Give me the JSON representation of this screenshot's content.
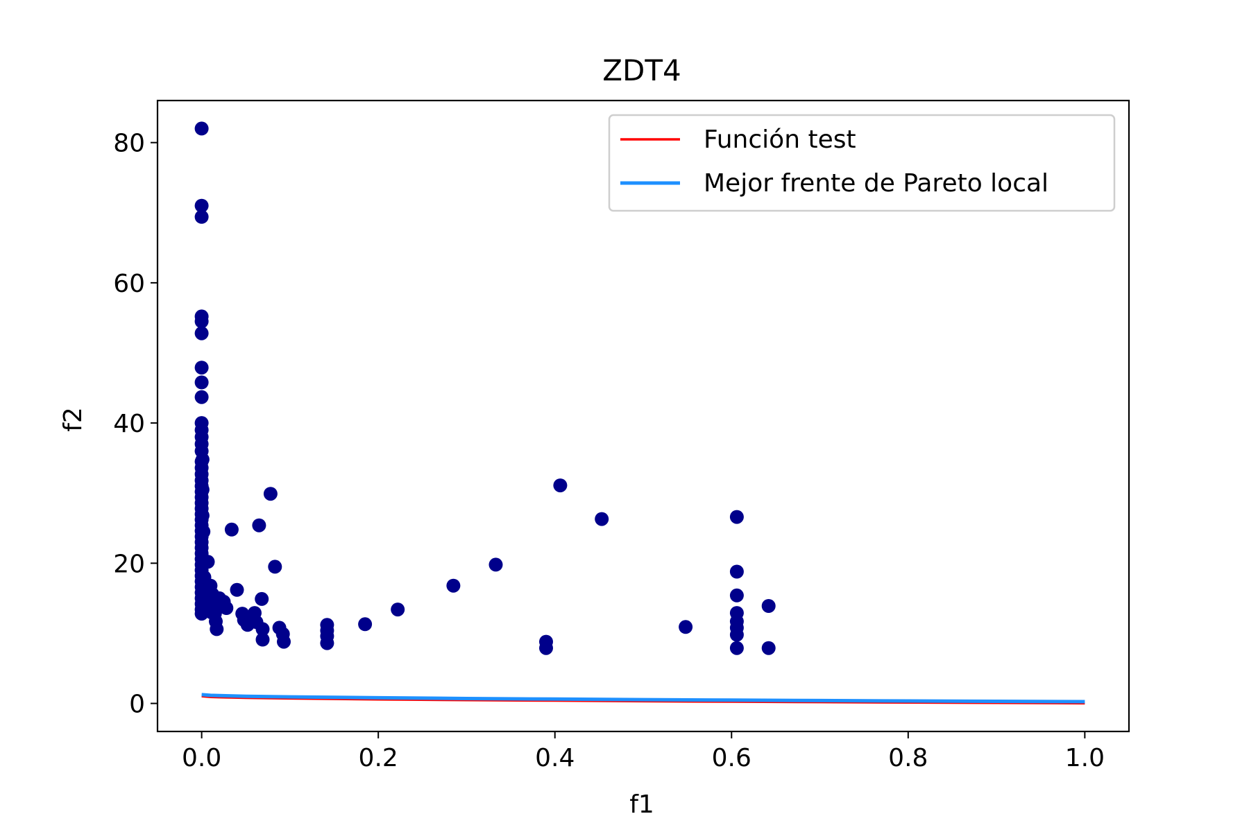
{
  "chart_data": {
    "type": "scatter",
    "title": "ZDT4",
    "xlabel": "f1",
    "ylabel": "f2",
    "xlim": [
      -0.05,
      1.05
    ],
    "ylim": [
      -4,
      86
    ],
    "xticks": [
      0.0,
      0.2,
      0.4,
      0.6,
      0.8,
      1.0
    ],
    "xtick_labels": [
      "0.0",
      "0.2",
      "0.4",
      "0.6",
      "0.8",
      "1.0"
    ],
    "yticks": [
      0,
      20,
      40,
      60,
      80
    ],
    "ytick_labels": [
      "0",
      "20",
      "40",
      "60",
      "80"
    ],
    "grid": false,
    "legend_position": "upper right",
    "series": [
      {
        "name": "Función test",
        "kind": "line",
        "color": "#ff0000",
        "points": [
          [
            0.0,
            1.0
          ],
          [
            0.01,
            0.9
          ],
          [
            0.02,
            0.859
          ],
          [
            0.05,
            0.776
          ],
          [
            0.1,
            0.684
          ],
          [
            0.2,
            0.553
          ],
          [
            0.3,
            0.452
          ],
          [
            0.4,
            0.368
          ],
          [
            0.5,
            0.293
          ],
          [
            0.6,
            0.225
          ],
          [
            0.7,
            0.163
          ],
          [
            0.8,
            0.106
          ],
          [
            0.9,
            0.051
          ],
          [
            1.0,
            0.0
          ]
        ]
      },
      {
        "name": "Mejor frente de Pareto local",
        "kind": "line",
        "color": "#1e90ff",
        "points": [
          [
            0.0,
            1.25
          ],
          [
            0.01,
            1.15
          ],
          [
            0.02,
            1.109
          ],
          [
            0.05,
            1.026
          ],
          [
            0.1,
            0.934
          ],
          [
            0.2,
            0.803
          ],
          [
            0.3,
            0.702
          ],
          [
            0.4,
            0.618
          ],
          [
            0.5,
            0.543
          ],
          [
            0.6,
            0.475
          ],
          [
            0.7,
            0.413
          ],
          [
            0.8,
            0.356
          ],
          [
            0.9,
            0.301
          ],
          [
            1.0,
            0.25
          ]
        ]
      },
      {
        "kind": "scatter",
        "color": "#00008b",
        "points": [
          [
            0.0,
            82.0
          ],
          [
            0.0,
            71.0
          ],
          [
            0.0,
            69.4
          ],
          [
            0.0,
            55.2
          ],
          [
            0.0,
            54.5
          ],
          [
            0.0,
            52.8
          ],
          [
            0.0,
            47.9
          ],
          [
            0.0,
            45.8
          ],
          [
            0.0,
            43.7
          ],
          [
            0.0,
            40.0
          ],
          [
            0.0,
            39.0
          ],
          [
            0.0,
            38.0
          ],
          [
            0.0,
            37.0
          ],
          [
            0.0,
            36.0
          ],
          [
            0.0,
            34.5
          ],
          [
            0.0,
            33.6
          ],
          [
            0.0,
            32.7
          ],
          [
            0.0,
            31.8
          ],
          [
            0.0,
            31.0
          ],
          [
            0.0,
            30.2
          ],
          [
            0.0,
            29.4
          ],
          [
            0.0,
            28.6
          ],
          [
            0.0,
            27.8
          ],
          [
            0.0,
            27.0
          ],
          [
            0.0,
            26.2
          ],
          [
            0.0,
            25.4
          ],
          [
            0.0,
            24.6
          ],
          [
            0.0,
            23.8
          ],
          [
            0.0,
            23.0
          ],
          [
            0.0,
            22.2
          ],
          [
            0.0,
            21.4
          ],
          [
            0.0,
            20.6
          ],
          [
            0.0,
            19.8
          ],
          [
            0.0,
            19.0
          ],
          [
            0.0,
            18.2
          ],
          [
            0.0,
            17.4
          ],
          [
            0.0,
            16.6
          ],
          [
            0.0,
            15.8
          ],
          [
            0.0,
            15.0
          ],
          [
            0.0,
            14.2
          ],
          [
            0.0,
            13.4
          ],
          [
            0.0,
            12.8
          ],
          [
            0.001,
            34.8
          ],
          [
            0.001,
            30.5
          ],
          [
            0.001,
            26.8
          ],
          [
            0.002,
            24.5
          ],
          [
            0.002,
            20.1
          ],
          [
            0.003,
            18.0
          ],
          [
            0.004,
            16.2
          ],
          [
            0.005,
            14.8
          ],
          [
            0.006,
            13.6
          ],
          [
            0.007,
            20.2
          ],
          [
            0.008,
            15.4
          ],
          [
            0.009,
            14.0
          ],
          [
            0.01,
            16.8
          ],
          [
            0.011,
            13.0
          ],
          [
            0.012,
            15.6
          ],
          [
            0.013,
            14.4
          ],
          [
            0.015,
            12.8
          ],
          [
            0.016,
            11.7
          ],
          [
            0.017,
            10.6
          ],
          [
            0.02,
            15.0
          ],
          [
            0.022,
            13.8
          ],
          [
            0.025,
            14.5
          ],
          [
            0.028,
            13.6
          ],
          [
            0.034,
            24.8
          ],
          [
            0.04,
            16.2
          ],
          [
            0.046,
            12.8
          ],
          [
            0.048,
            11.9
          ],
          [
            0.052,
            11.2
          ],
          [
            0.06,
            12.9
          ],
          [
            0.062,
            11.6
          ],
          [
            0.065,
            25.4
          ],
          [
            0.068,
            14.9
          ],
          [
            0.069,
            10.6
          ],
          [
            0.069,
            9.1
          ],
          [
            0.078,
            29.9
          ],
          [
            0.083,
            19.5
          ],
          [
            0.088,
            10.8
          ],
          [
            0.092,
            9.9
          ],
          [
            0.093,
            8.8
          ],
          [
            0.142,
            11.2
          ],
          [
            0.142,
            10.4
          ],
          [
            0.142,
            9.6
          ],
          [
            0.142,
            8.6
          ],
          [
            0.185,
            11.3
          ],
          [
            0.222,
            13.4
          ],
          [
            0.285,
            16.8
          ],
          [
            0.333,
            19.8
          ],
          [
            0.39,
            8.8
          ],
          [
            0.39,
            7.9
          ],
          [
            0.406,
            31.1
          ],
          [
            0.453,
            26.3
          ],
          [
            0.548,
            10.9
          ],
          [
            0.606,
            26.6
          ],
          [
            0.606,
            18.8
          ],
          [
            0.606,
            15.4
          ],
          [
            0.606,
            12.9
          ],
          [
            0.606,
            11.7
          ],
          [
            0.606,
            10.8
          ],
          [
            0.606,
            9.8
          ],
          [
            0.606,
            7.9
          ],
          [
            0.642,
            13.9
          ],
          [
            0.642,
            7.9
          ]
        ]
      }
    ]
  }
}
